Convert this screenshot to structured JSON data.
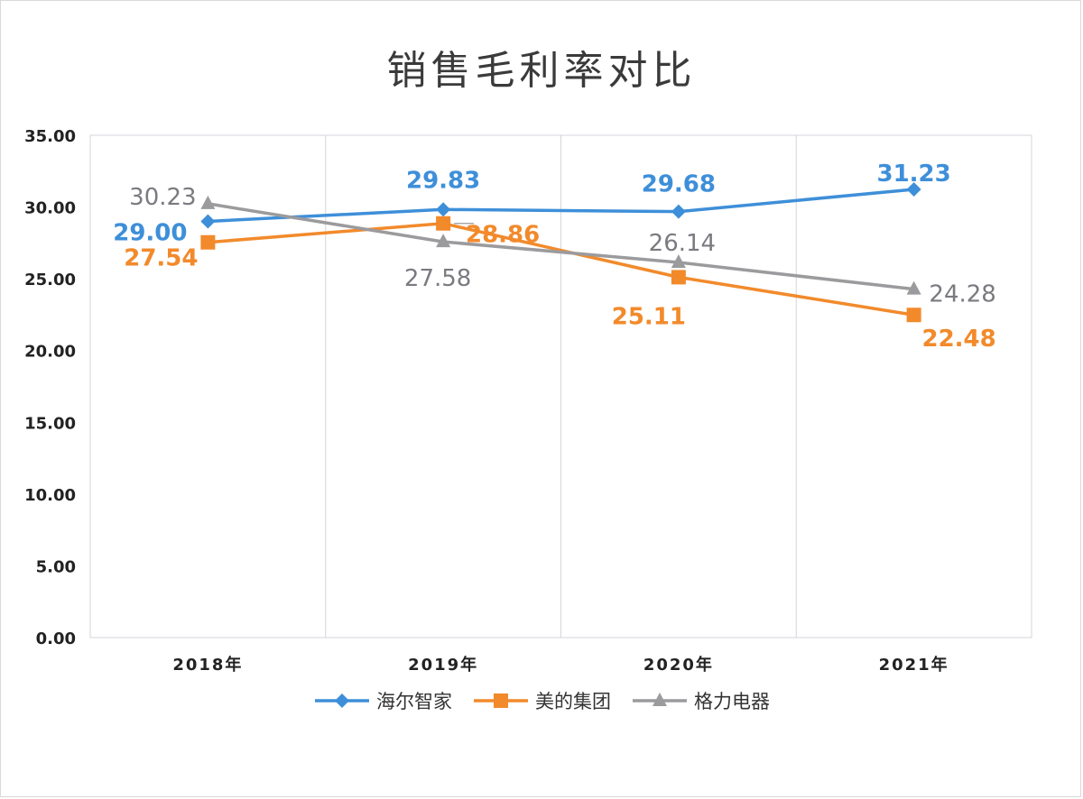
{
  "chart_data": {
    "type": "line",
    "title": "销售毛利率对比",
    "xlabel": "",
    "ylabel": "",
    "categories": [
      "2018年",
      "2019年",
      "2020年",
      "2021年"
    ],
    "ylim": [
      0,
      35
    ],
    "yticks": [
      "0.00",
      "5.00",
      "10.00",
      "15.00",
      "20.00",
      "25.00",
      "30.00",
      "35.00"
    ],
    "grid": "vertical",
    "legend_position": "bottom",
    "series": [
      {
        "name": "海尔智家",
        "values": [
          29.0,
          29.83,
          29.68,
          31.23
        ],
        "labels": [
          "29.00",
          "29.83",
          "29.68",
          "31.23"
        ],
        "color": "#3e8fd9",
        "marker": "diamond"
      },
      {
        "name": "美的集团",
        "values": [
          27.54,
          28.86,
          25.11,
          22.48
        ],
        "labels": [
          "27.54",
          "28.86",
          "25.11",
          "22.48"
        ],
        "color": "#f28a2b",
        "marker": "square"
      },
      {
        "name": "格力电器",
        "values": [
          30.23,
          27.58,
          26.14,
          24.28
        ],
        "labels": [
          "30.23",
          "27.58",
          "26.14",
          "24.28"
        ],
        "color": "#9b9b9e",
        "marker": "triangle"
      }
    ]
  }
}
